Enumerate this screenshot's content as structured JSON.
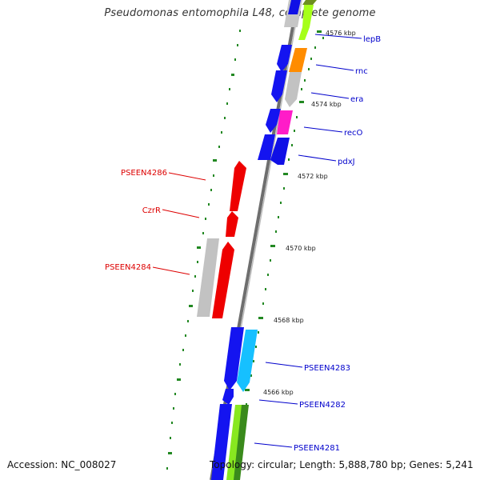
{
  "title": "Pseudomonas entomophila L48, complete genome",
  "footer": {
    "accession": "Accession: NC_008027",
    "summary": "Topology: circular; Length: 5,888,780 bp; Genes: 5,241"
  },
  "colors": {
    "forward_label": "#0000cc",
    "reverse_label": "#dd0000",
    "tick": "#228822",
    "backbone": "#888888"
  },
  "scale_labels": [
    "4576 kbp",
    "4574 kbp",
    "4572 kbp",
    "4570 kbp",
    "4568 kbp",
    "4566 kbp"
  ],
  "forward_gene_labels": [
    "lepB",
    "rnc",
    "era",
    "recO",
    "pdxJ",
    "PSEEN4283",
    "PSEEN4282",
    "PSEEN4281"
  ],
  "reverse_gene_labels": [
    "PSEEN4286",
    "CzrR",
    "PSEEN4284"
  ]
}
